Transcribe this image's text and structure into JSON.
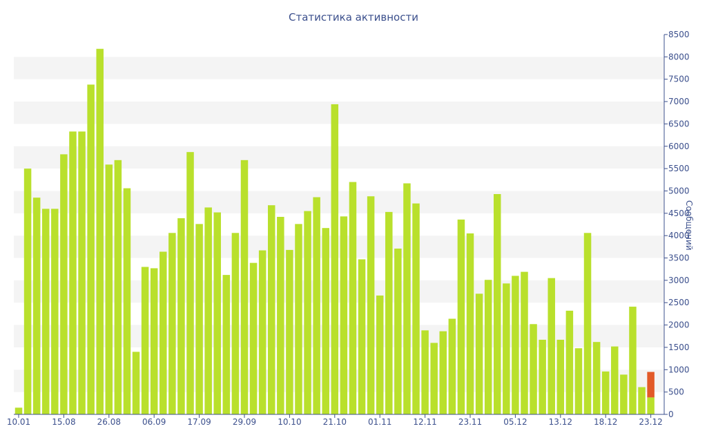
{
  "chart_data": {
    "type": "bar",
    "title": "Статистика активности",
    "xlabel": "",
    "ylabel": "Сообщений",
    "ylim": [
      0,
      8500
    ],
    "y_axis_position": "right",
    "yticks": [
      0,
      500,
      1000,
      1500,
      2000,
      2500,
      3000,
      3500,
      4000,
      4500,
      5000,
      5500,
      6000,
      6500,
      7000,
      7500,
      8000,
      8500
    ],
    "x_tick_labels": [
      "10.01",
      "15.08",
      "26.08",
      "06.09",
      "17.09",
      "29.09",
      "10.10",
      "21.10",
      "01.11",
      "12.11",
      "23.11",
      "05.12",
      "13.12",
      "18.12",
      "23.12"
    ],
    "x_tick_bar_index": [
      0,
      5,
      10,
      15,
      20,
      25,
      30,
      35,
      40,
      45,
      50,
      55,
      60,
      65,
      70
    ],
    "grid": "alternating horizontal bands",
    "colors": {
      "bar": "#b9e02c",
      "highlight": "#e25a28",
      "band": "#f4f4f4",
      "axis": "#3b4f8c"
    },
    "series": [
      {
        "values": [
          150,
          5500,
          4850,
          4600,
          4600,
          5820,
          6330,
          6330,
          7380,
          8180,
          5590,
          5690,
          5060,
          1400,
          3300,
          3270,
          3640,
          4060,
          4390,
          5870,
          4260,
          4630,
          4520,
          3120,
          4060,
          5690,
          3390,
          3670,
          4680,
          4420,
          3680,
          4260,
          4550,
          4860,
          4170,
          6940,
          4430,
          5200,
          3470,
          4880,
          2660,
          4530,
          3710,
          5170,
          4720,
          1880,
          1600,
          1860,
          2140,
          4360,
          4050,
          2700,
          3010,
          4930,
          2930,
          3100,
          3190,
          2020,
          1670,
          3050,
          1670,
          2320,
          1480,
          4060,
          1620,
          960,
          1520,
          890,
          2410,
          610,
          380
        ]
      },
      {
        "values": [
          0,
          0,
          0,
          0,
          0,
          0,
          0,
          0,
          0,
          0,
          0,
          0,
          0,
          0,
          0,
          0,
          0,
          0,
          0,
          0,
          0,
          0,
          0,
          0,
          0,
          0,
          0,
          0,
          0,
          0,
          0,
          0,
          0,
          0,
          0,
          0,
          0,
          0,
          0,
          0,
          0,
          0,
          0,
          0,
          0,
          0,
          0,
          0,
          0,
          0,
          0,
          0,
          0,
          0,
          0,
          0,
          0,
          0,
          0,
          0,
          0,
          0,
          0,
          0,
          0,
          0,
          0,
          0,
          0,
          0,
          570
        ]
      }
    ]
  }
}
